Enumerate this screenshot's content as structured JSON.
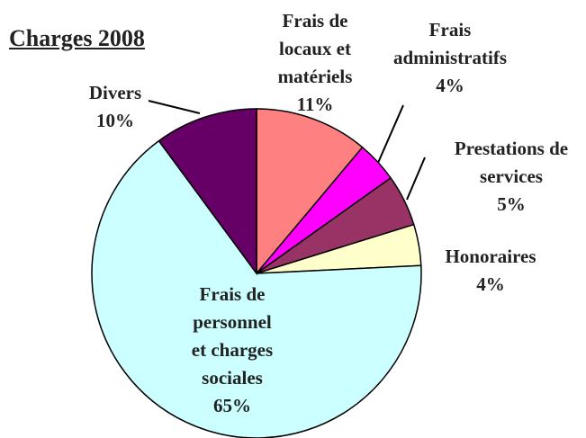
{
  "chart_data": {
    "type": "pie",
    "title": "Charges 2008",
    "categories": [
      "Frais de locaux et matériels",
      "Frais administratifs",
      "Prestations de services",
      "Honoraires",
      "Frais de personnel et charges sociales",
      "Divers"
    ],
    "values": [
      11,
      4,
      5,
      4,
      65,
      10
    ],
    "value_labels": [
      "11%",
      "4%",
      "5%",
      "4%",
      "65%",
      "10%"
    ],
    "colors": [
      "#ff8080",
      "#ff00ff",
      "#993366",
      "#ffffcc",
      "#ccffff",
      "#660066"
    ]
  }
}
